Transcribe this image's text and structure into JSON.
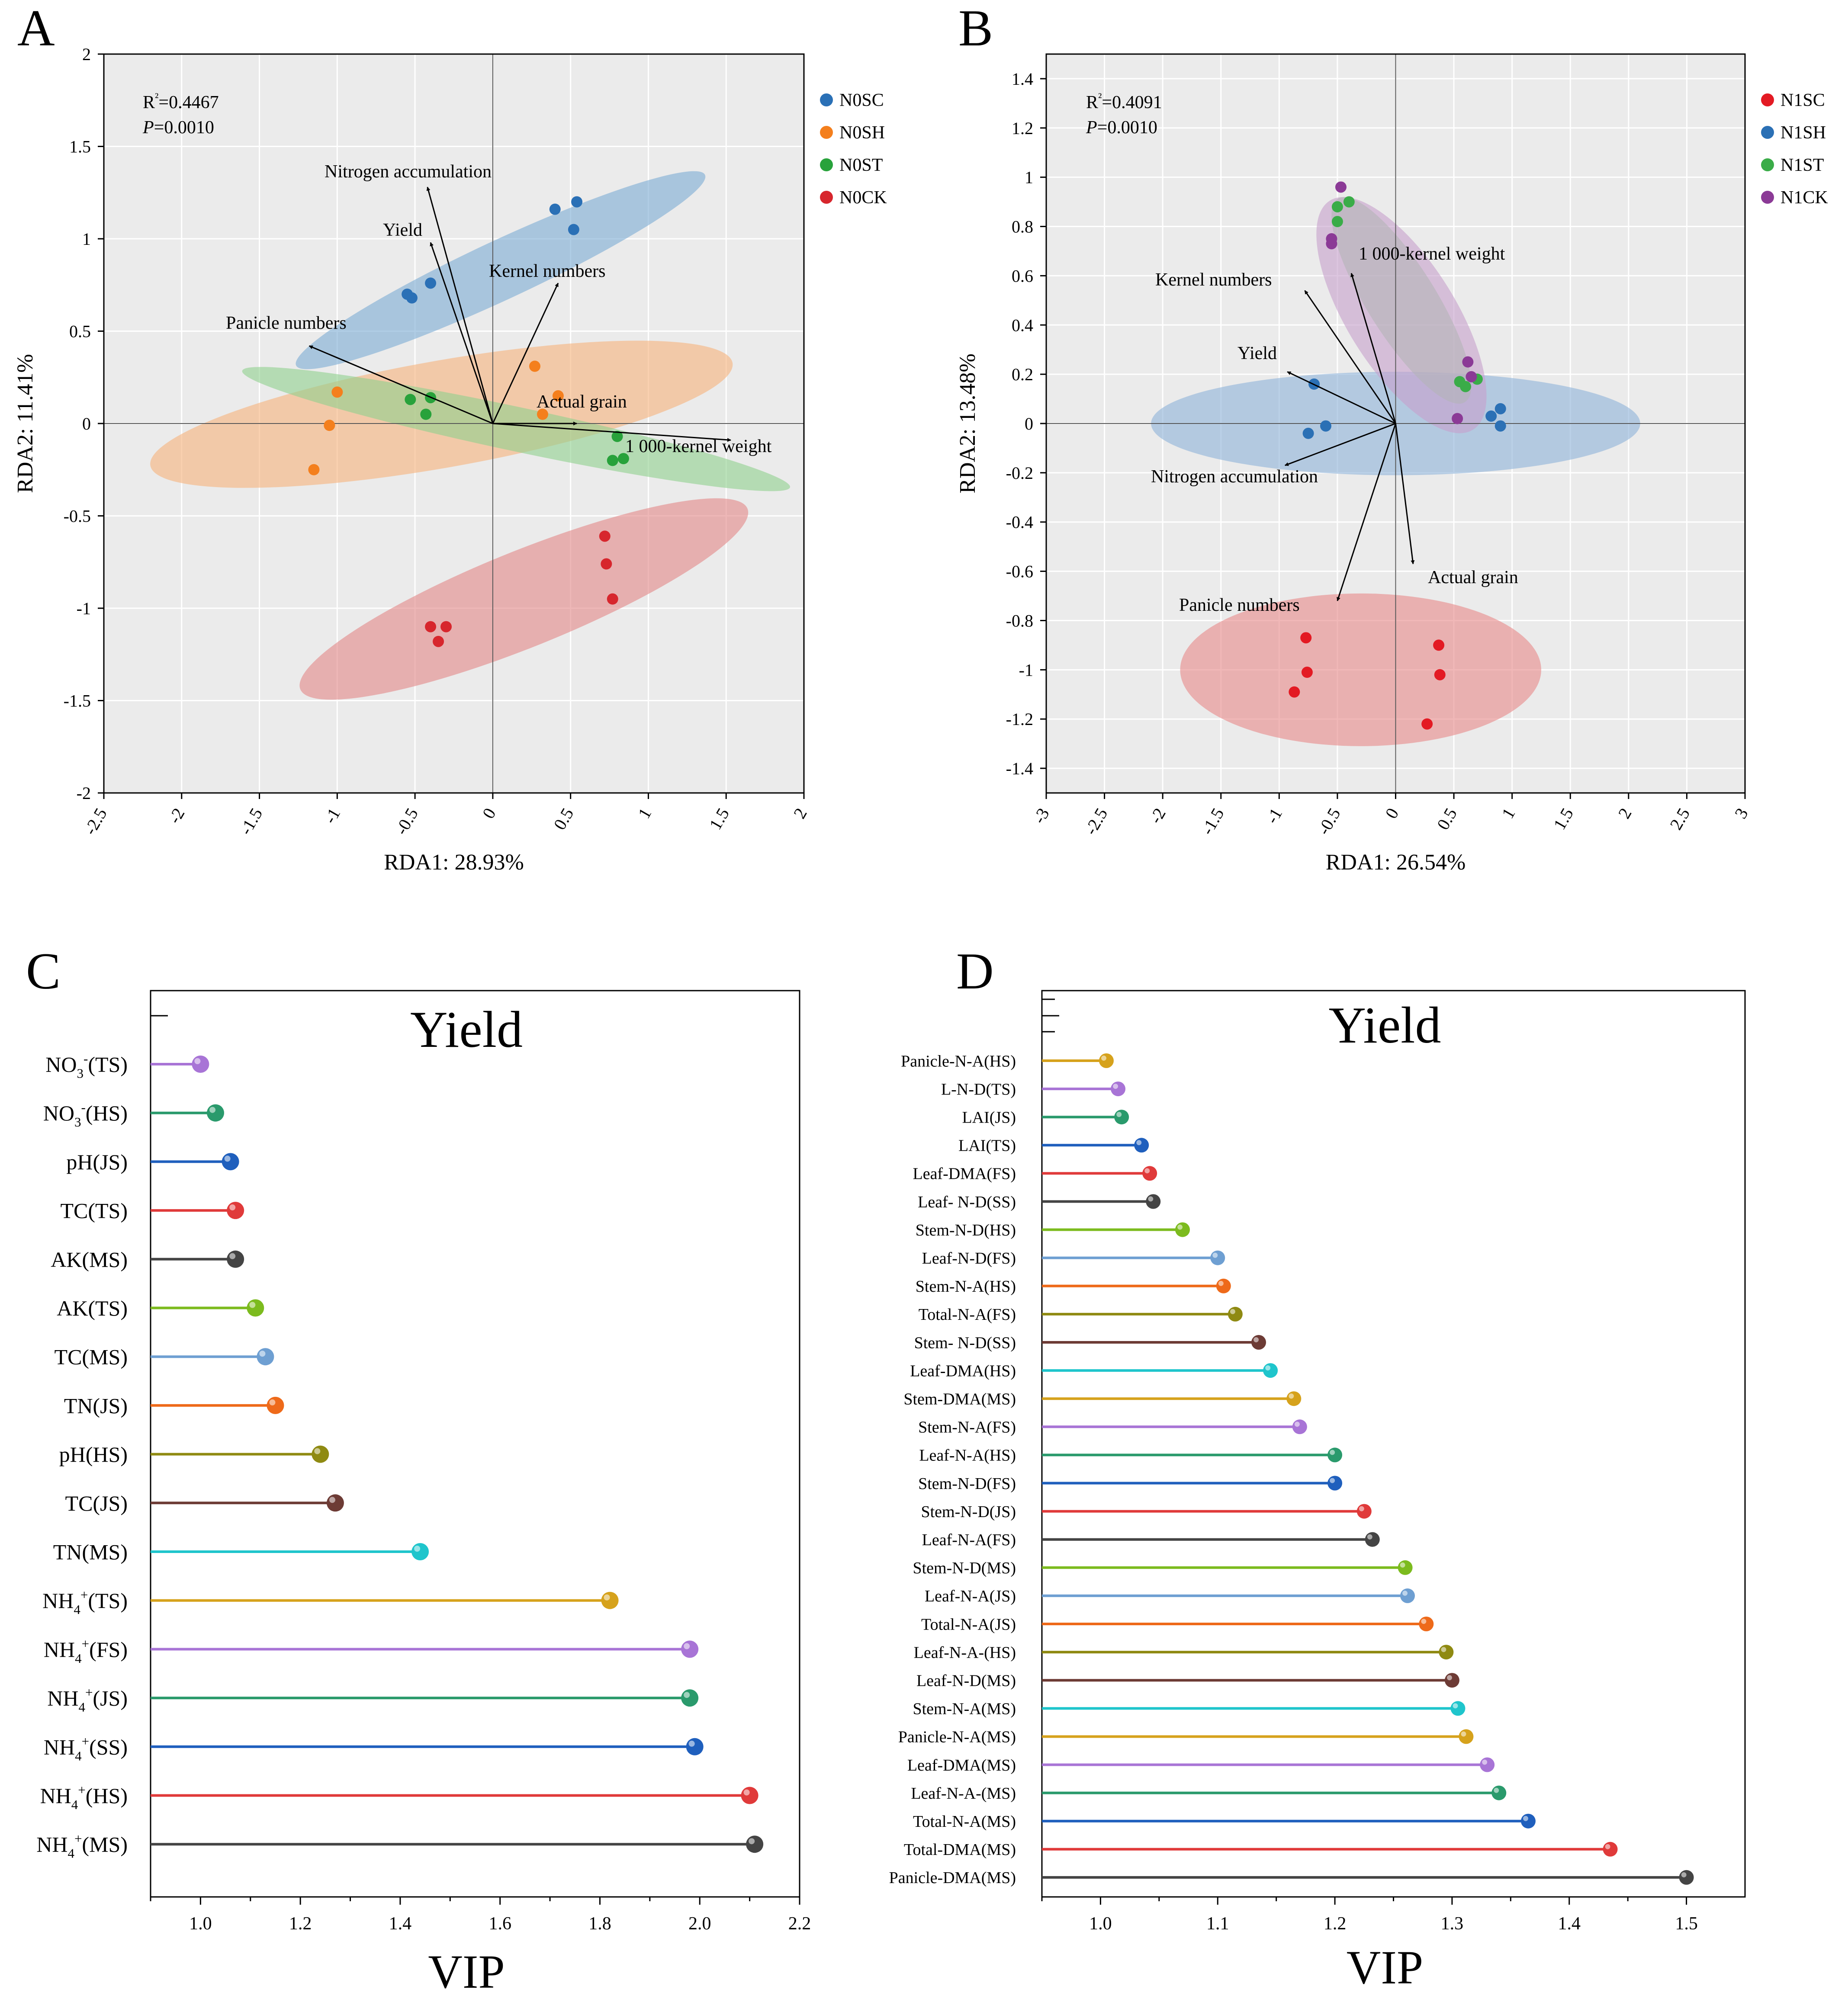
{
  "chart_data": [
    {
      "type": "scatter",
      "panel": "A",
      "xlabel": "RDA1: 28.93%",
      "ylabel": "RDA2: 11.41%",
      "xlim": [
        -2.5,
        2
      ],
      "ylim": [
        -2,
        2
      ],
      "xticks": [
        -2.5,
        -2,
        -1.5,
        -1,
        -0.5,
        0,
        0.5,
        1,
        1.5,
        2
      ],
      "yticks": [
        -2,
        -1.5,
        -1,
        -0.5,
        0,
        0.5,
        1,
        1.5,
        2
      ],
      "stats": {
        "r2": "R²=0.4467",
        "p_label": "P",
        "p_value": "=0.0010"
      },
      "legend_position": "right",
      "series": [
        {
          "name": "N0SC",
          "color": "#2a70b6",
          "points": [
            [
              0.4,
              1.16
            ],
            [
              0.54,
              1.2
            ],
            [
              0.52,
              1.05
            ],
            [
              -0.4,
              0.76
            ],
            [
              -0.55,
              0.7
            ],
            [
              -0.52,
              0.68
            ]
          ],
          "ellipse": {
            "cx": 0.05,
            "cy": 0.83,
            "rx": 1.45,
            "ry": 0.16,
            "angle": 25,
            "fill": "#7bacd4"
          }
        },
        {
          "name": "N0SH",
          "color": "#f47f1d",
          "points": [
            [
              -1.0,
              0.17
            ],
            [
              -1.05,
              -0.01
            ],
            [
              -1.15,
              -0.25
            ],
            [
              0.27,
              0.31
            ],
            [
              0.42,
              0.15
            ],
            [
              0.32,
              0.05
            ]
          ],
          "ellipse": {
            "cx": -0.33,
            "cy": 0.05,
            "rx": 1.9,
            "ry": 0.29,
            "angle": 10,
            "fill": "#f6b27c"
          }
        },
        {
          "name": "N0ST",
          "color": "#28a23b",
          "points": [
            [
              -0.53,
              0.13
            ],
            [
              -0.4,
              0.14
            ],
            [
              -0.43,
              0.05
            ],
            [
              0.8,
              -0.07
            ],
            [
              0.77,
              -0.2
            ],
            [
              0.84,
              -0.19
            ]
          ],
          "ellipse": {
            "cx": 0.15,
            "cy": -0.03,
            "rx": 1.8,
            "ry": 0.12,
            "angle": -12,
            "fill": "#8fd08e"
          }
        },
        {
          "name": "N0CK",
          "color": "#d7262d",
          "points": [
            [
              -0.4,
              -1.1
            ],
            [
              -0.3,
              -1.1
            ],
            [
              -0.35,
              -1.18
            ],
            [
              0.72,
              -0.61
            ],
            [
              0.73,
              -0.76
            ],
            [
              0.77,
              -0.95
            ]
          ],
          "ellipse": {
            "cx": 0.2,
            "cy": -0.95,
            "rx": 1.55,
            "ry": 0.26,
            "angle": 22,
            "fill": "#e38787"
          }
        }
      ],
      "vectors": [
        {
          "label": "Nitrogen accumulation",
          "x": -0.42,
          "y": 1.28
        },
        {
          "label": "Yield",
          "x": -0.4,
          "y": 0.98
        },
        {
          "label": "Kernel numbers",
          "x": 0.42,
          "y": 0.76
        },
        {
          "label": "Panicle numbers",
          "x": -1.18,
          "y": 0.42
        },
        {
          "label": "Actual grain",
          "x": 0.54,
          "y": 0.0
        },
        {
          "label": "1 000-kernel weight",
          "x": 1.53,
          "y": -0.09
        }
      ]
    },
    {
      "type": "scatter",
      "panel": "B",
      "xlabel": "RDA1: 26.54%",
      "ylabel": "RDA2: 13.48%",
      "xlim": [
        -3,
        3
      ],
      "ylim": [
        -1.5,
        1.5
      ],
      "xticks": [
        -3,
        -2.5,
        -2,
        -1.5,
        -1,
        -0.5,
        0,
        0.5,
        1,
        1.5,
        2,
        2.5,
        3
      ],
      "yticks": [
        -1.4,
        -1.2,
        -1,
        -0.8,
        -0.6,
        -0.4,
        -0.2,
        0,
        0.2,
        0.4,
        0.6,
        0.8,
        1,
        1.2,
        1.4
      ],
      "stats": {
        "r2": "R²=0.4091",
        "p_label": "P",
        "p_value": "=0.0010"
      },
      "legend_position": "right",
      "series": [
        {
          "name": "N1SC",
          "color": "#e31a23",
          "points": [
            [
              -0.77,
              -0.87
            ],
            [
              -0.76,
              -1.01
            ],
            [
              -0.87,
              -1.09
            ],
            [
              0.37,
              -0.9
            ],
            [
              0.38,
              -1.02
            ],
            [
              0.27,
              -1.22
            ]
          ],
          "ellipse": {
            "cx": -0.3,
            "cy": -1.0,
            "rx": 1.55,
            "ry": 0.31,
            "angle": 0,
            "fill": "#e88888"
          }
        },
        {
          "name": "N1SH",
          "color": "#2b70b5",
          "points": [
            [
              -0.7,
              0.16
            ],
            [
              -0.6,
              -0.01
            ],
            [
              -0.75,
              -0.04
            ],
            [
              0.82,
              0.03
            ],
            [
              0.9,
              0.06
            ],
            [
              0.9,
              -0.01
            ]
          ],
          "ellipse": {
            "cx": 0.0,
            "cy": 0.0,
            "rx": 2.1,
            "ry": 0.21,
            "angle": 0,
            "fill": "#8db3d9"
          }
        },
        {
          "name": "N1ST",
          "color": "#3aac48",
          "points": [
            [
              -0.5,
              0.88
            ],
            [
              -0.4,
              0.9
            ],
            [
              -0.5,
              0.82
            ],
            [
              0.55,
              0.17
            ],
            [
              0.6,
              0.15
            ],
            [
              0.7,
              0.18
            ]
          ],
          "ellipse": {
            "cx": 0.05,
            "cy": 0.5,
            "rx": 1.03,
            "ry": 0.14,
            "angle": -58,
            "fill": "#9ad19a"
          }
        },
        {
          "name": "N1CK",
          "color": "#8b3a96",
          "points": [
            [
              -0.47,
              0.96
            ],
            [
              -0.55,
              0.73
            ],
            [
              -0.55,
              0.75
            ],
            [
              0.62,
              0.25
            ],
            [
              0.65,
              0.19
            ],
            [
              0.53,
              0.02
            ]
          ],
          "ellipse": {
            "cx": 0.05,
            "cy": 0.44,
            "rx": 1.16,
            "ry": 0.22,
            "angle": -58,
            "fill": "#c7a0cc"
          }
        }
      ],
      "vectors": [
        {
          "label": "1 000-kernel weight",
          "x": -0.38,
          "y": 0.61
        },
        {
          "label": "Kernel numbers",
          "x": -0.78,
          "y": 0.54
        },
        {
          "label": "Yield",
          "x": -0.93,
          "y": 0.21
        },
        {
          "label": "Nitrogen accumulation",
          "x": -0.95,
          "y": -0.17
        },
        {
          "label": "Actual grain",
          "x": 0.15,
          "y": -0.57
        },
        {
          "label": "Panicle numbers",
          "x": -0.5,
          "y": -0.72
        }
      ]
    },
    {
      "type": "bar",
      "style": "lollipop",
      "panel": "C",
      "title": "Yield",
      "xlabel": "VIP",
      "xlim": [
        0.9,
        2.2
      ],
      "xticks": [
        1.0,
        1.2,
        1.4,
        1.6,
        1.8,
        2.0,
        2.2
      ],
      "categories": [
        {
          "base": "NO",
          "sub": "3",
          "sup": "-",
          "tail": "(TS)"
        },
        {
          "base": "NO",
          "sub": "3",
          "sup": "-",
          "tail": "(HS)"
        },
        {
          "base": "pH(JS)"
        },
        {
          "base": "TC(TS)"
        },
        {
          "base": "AK(MS)"
        },
        {
          "base": "AK(TS)"
        },
        {
          "base": "TC(MS)"
        },
        {
          "base": "TN(JS)"
        },
        {
          "base": "pH(HS)"
        },
        {
          "base": "TC(JS)"
        },
        {
          "base": "TN(MS)"
        },
        {
          "base": "NH",
          "sub": "4",
          "sup": "+",
          "tail": "(TS)"
        },
        {
          "base": "NH",
          "sub": "4",
          "sup": "+",
          "tail": "(FS)"
        },
        {
          "base": "NH",
          "sub": "4",
          "sup": "+",
          "tail": "(JS)"
        },
        {
          "base": "NH",
          "sub": "4",
          "sup": "+",
          "tail": "(SS)"
        },
        {
          "base": "NH",
          "sub": "4",
          "sup": "+",
          "tail": "(HS)"
        },
        {
          "base": "NH",
          "sub": "4",
          "sup": "+",
          "tail": "(MS)"
        }
      ],
      "values": [
        1.0,
        1.03,
        1.06,
        1.07,
        1.07,
        1.11,
        1.13,
        1.15,
        1.24,
        1.27,
        1.44,
        1.82,
        1.98,
        1.98,
        1.99,
        2.1,
        2.11
      ],
      "colors": [
        "#a874d6",
        "#2a9a6c",
        "#1f5fbd",
        "#e03a3a",
        "#444444",
        "#7cbb1e",
        "#6e9fd2",
        "#ee6a1a",
        "#8f8a12",
        "#6d3b35",
        "#1fc5cc",
        "#d6a21c",
        "#a874d6",
        "#2a9a6c",
        "#1f5fbd",
        "#e03a3a",
        "#444444"
      ]
    },
    {
      "type": "bar",
      "style": "lollipop",
      "panel": "D",
      "title": "Yield",
      "xlabel": "VIP",
      "xlim": [
        0.95,
        1.55
      ],
      "xticks": [
        1.0,
        1.1,
        1.2,
        1.3,
        1.4,
        1.5
      ],
      "categories": [
        "Panicle-N-A(HS)",
        "L-N-D(TS)",
        "LAI(JS)",
        "LAI(TS)",
        "Leaf-DMA(FS)",
        "Leaf- N-D(SS)",
        "Stem-N-D(HS)",
        "Leaf-N-D(FS)",
        "Stem-N-A(HS)",
        "Total-N-A(FS)",
        "Stem- N-D(SS)",
        "Leaf-DMA(HS)",
        "Stem-DMA(MS)",
        "Stem-N-A(FS)",
        "Leaf-N-A(HS)",
        "Stem-N-D(FS)",
        "Stem-N-D(JS)",
        "Leaf-N-A(FS)",
        "Stem-N-D(MS)",
        "Leaf-N-A(JS)",
        "Total-N-A(JS)",
        "Leaf-N-A-(HS)",
        "Leaf-N-D(MS)",
        "Stem-N-A(MS)",
        "Panicle-N-A(MS)",
        "Leaf-DMA(MS)",
        "Leaf-N-A-(MS)",
        "Total-N-A(MS)",
        "Total-DMA(MS)",
        "Panicle-DMA(MS)"
      ],
      "values": [
        1.005,
        1.015,
        1.018,
        1.035,
        1.042,
        1.045,
        1.07,
        1.1,
        1.105,
        1.115,
        1.135,
        1.145,
        1.165,
        1.17,
        1.2,
        1.2,
        1.225,
        1.232,
        1.26,
        1.262,
        1.278,
        1.295,
        1.3,
        1.305,
        1.312,
        1.33,
        1.34,
        1.365,
        1.435,
        1.5
      ],
      "colors": [
        "#d6a21c",
        "#a874d6",
        "#2a9a6c",
        "#1f5fbd",
        "#e03a3a",
        "#444444",
        "#7cbb1e",
        "#6e9fd2",
        "#ee6a1a",
        "#8f8a12",
        "#6d3b35",
        "#1fc5cc",
        "#d6a21c",
        "#a874d6",
        "#2a9a6c",
        "#1f5fbd",
        "#e03a3a",
        "#444444",
        "#7cbb1e",
        "#6e9fd2",
        "#ee6a1a",
        "#8f8a12",
        "#6d3b35",
        "#1fc5cc",
        "#d6a21c",
        "#a874d6",
        "#2a9a6c",
        "#1f5fbd",
        "#e03a3a",
        "#444444"
      ]
    }
  ]
}
